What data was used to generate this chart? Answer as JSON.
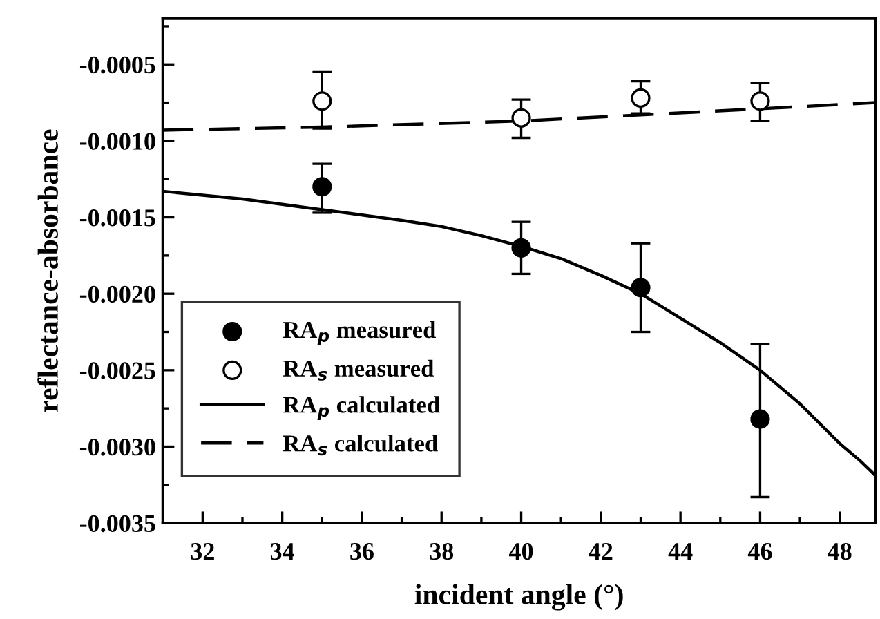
{
  "chart_data": {
    "type": "scatter",
    "xlabel": "incident angle (°)",
    "ylabel": "reflectance-absorbance",
    "xlim": [
      31,
      48.9
    ],
    "ylim": [
      -0.0035,
      -0.0002
    ],
    "xticks": [
      32,
      34,
      36,
      38,
      40,
      42,
      44,
      46,
      48
    ],
    "yticks": [
      {
        "value": -0.0035,
        "label": "-0.0035"
      },
      {
        "value": -0.003,
        "label": "-0.0030"
      },
      {
        "value": -0.0025,
        "label": "-0.0025"
      },
      {
        "value": -0.002,
        "label": "-0.0020"
      },
      {
        "value": -0.0015,
        "label": "-0.0015"
      },
      {
        "value": -0.001,
        "label": "-0.0010"
      },
      {
        "value": -0.0005,
        "label": "-0.0005"
      }
    ],
    "grid": false,
    "legend": "bottom left",
    "series": [
      {
        "name": "RA$_{p}$ measured",
        "marker": "circle",
        "color": "#000000",
        "x": [
          35,
          40,
          43,
          46
        ],
        "values": [
          -0.0013,
          -0.0017,
          -0.00196,
          -0.00282
        ],
        "errors": [
          [
            -0.00147,
            -0.00115
          ],
          [
            -0.00187,
            -0.00153
          ],
          [
            -0.00225,
            -0.00167
          ],
          [
            -0.00333,
            -0.00233
          ]
        ]
      },
      {
        "name": "RA$_{s}$ measured",
        "marker": "circle",
        "color": "#ffffff",
        "x": [
          35,
          40,
          43,
          46
        ],
        "values": [
          -0.00074,
          -0.00085,
          -0.00072,
          -0.00074
        ],
        "errors": [
          [
            -0.00092,
            -0.00055
          ],
          [
            -0.00098,
            -0.00073
          ],
          [
            -0.00082,
            -0.00061
          ],
          [
            -0.00087,
            -0.00062
          ]
        ]
      },
      {
        "name": "RA$_{p}$ calculated",
        "type": "line",
        "line_style": "solid",
        "color": "#000000",
        "x": [
          31,
          33,
          35,
          37,
          38,
          39,
          40,
          41,
          42,
          43,
          44,
          45,
          46,
          47,
          48,
          48.5,
          48.9
        ],
        "values": [
          -0.00133,
          -0.00138,
          -0.00145,
          -0.00152,
          -0.00156,
          -0.00162,
          -0.00169,
          -0.00177,
          -0.00188,
          -0.002,
          -0.00216,
          -0.00232,
          -0.0025,
          -0.00272,
          -0.00298,
          -0.00309,
          -0.00319
        ]
      },
      {
        "name": "RA$_{s}$ calculated",
        "type": "line",
        "line_style": "dashed",
        "color": "#000000",
        "x": [
          31,
          35,
          40,
          43,
          46,
          48.9
        ],
        "values": [
          -0.00093,
          -0.00091,
          -0.00087,
          -0.00083,
          -0.00079,
          -0.00075
        ]
      }
    ]
  }
}
